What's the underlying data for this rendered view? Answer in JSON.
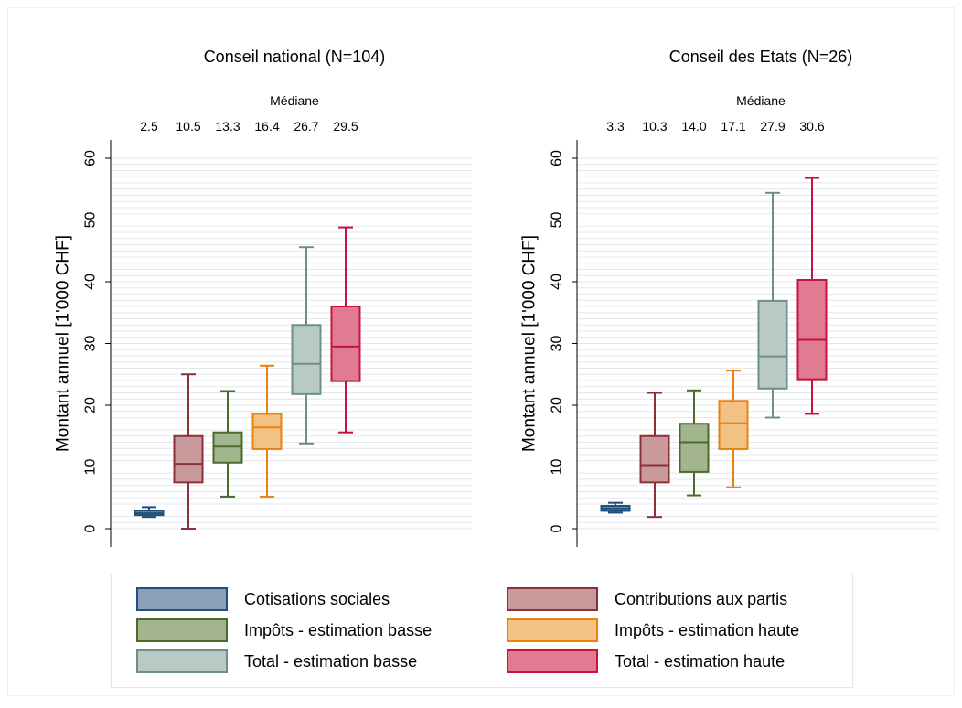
{
  "chart_data": [
    {
      "type": "box",
      "title": "Conseil national (N=104)",
      "median_header": "Médiane",
      "ylabel": "Montant annuel [1'000 CHF]",
      "ylim": [
        0,
        60
      ],
      "yticks": [
        0,
        10,
        20,
        30,
        40,
        50,
        60
      ],
      "grid": true,
      "series": [
        {
          "name": "Cotisations sociales",
          "median_label": "2.5",
          "whisker_low": 1.9,
          "q1": 2.2,
          "median": 2.5,
          "q3": 2.9,
          "whisker_high": 3.5
        },
        {
          "name": "Contributions aux partis",
          "median_label": "10.5",
          "whisker_low": 0.0,
          "q1": 7.5,
          "median": 10.5,
          "q3": 15.0,
          "whisker_high": 25.0
        },
        {
          "name": "Impôts - estimation basse",
          "median_label": "13.3",
          "whisker_low": 5.2,
          "q1": 10.7,
          "median": 13.3,
          "q3": 15.6,
          "whisker_high": 22.3
        },
        {
          "name": "Impôts - estimation haute",
          "median_label": "16.4",
          "whisker_low": 5.2,
          "q1": 12.9,
          "median": 16.4,
          "q3": 18.6,
          "whisker_high": 26.4
        },
        {
          "name": "Total - estimation basse",
          "median_label": "26.7",
          "whisker_low": 13.8,
          "q1": 21.8,
          "median": 26.7,
          "q3": 33.0,
          "whisker_high": 45.6
        },
        {
          "name": "Total - estimation haute",
          "median_label": "29.5",
          "whisker_low": 15.6,
          "q1": 23.9,
          "median": 29.5,
          "q3": 36.0,
          "whisker_high": 48.8
        }
      ]
    },
    {
      "type": "box",
      "title": "Conseil des Etats (N=26)",
      "median_header": "Médiane",
      "ylabel": "Montant annuel [1'000 CHF]",
      "ylim": [
        0,
        60
      ],
      "yticks": [
        0,
        10,
        20,
        30,
        40,
        50,
        60
      ],
      "grid": true,
      "series": [
        {
          "name": "Cotisations sociales",
          "median_label": "3.3",
          "whisker_low": 2.6,
          "q1": 2.9,
          "median": 3.3,
          "q3": 3.7,
          "whisker_high": 4.2
        },
        {
          "name": "Contributions aux partis",
          "median_label": "10.3",
          "whisker_low": 1.9,
          "q1": 7.5,
          "median": 10.3,
          "q3": 15.0,
          "whisker_high": 22.0
        },
        {
          "name": "Impôts - estimation basse",
          "median_label": "14.0",
          "whisker_low": 5.4,
          "q1": 9.2,
          "median": 14.0,
          "q3": 17.0,
          "whisker_high": 22.4
        },
        {
          "name": "Impôts - estimation haute",
          "median_label": "17.1",
          "whisker_low": 6.7,
          "q1": 12.9,
          "median": 17.1,
          "q3": 20.7,
          "whisker_high": 25.6
        },
        {
          "name": "Total - estimation basse",
          "median_label": "27.9",
          "whisker_low": 18.0,
          "q1": 22.7,
          "median": 27.9,
          "q3": 36.9,
          "whisker_high": 54.4
        },
        {
          "name": "Total - estimation haute",
          "median_label": "30.6",
          "whisker_low": 18.6,
          "q1": 24.2,
          "median": 30.6,
          "q3": 40.3,
          "whisker_high": 56.8
        }
      ]
    }
  ],
  "legend": {
    "placement": "bottom",
    "items": [
      {
        "label": "Cotisations sociales",
        "fill": "#8ba0b8",
        "stroke": "#1f4e79"
      },
      {
        "label": "Contributions aux partis",
        "fill": "#c89a9c",
        "stroke": "#8b3037"
      },
      {
        "label": "Impôts - estimation basse",
        "fill": "#a3b58e",
        "stroke": "#4a6b2a"
      },
      {
        "label": "Impôts - estimation haute",
        "fill": "#f2c184",
        "stroke": "#e8830f"
      },
      {
        "label": "Total - estimation basse",
        "fill": "#b9c9c4",
        "stroke": "#6e8f88"
      },
      {
        "label": "Total - estimation haute",
        "fill": "#e07b92",
        "stroke": "#c5133d"
      }
    ]
  },
  "colors": {
    "grid": "#e3e7ea",
    "frame": "#eef0f2",
    "axis": "#000000"
  }
}
